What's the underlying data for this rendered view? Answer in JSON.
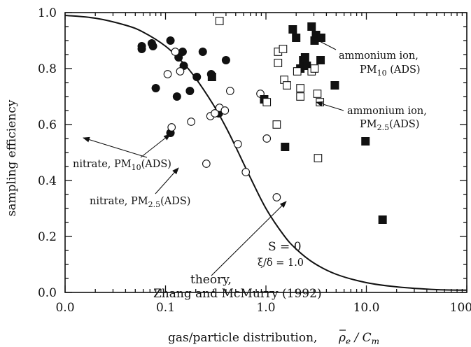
{
  "chart_data": {
    "type": "scatter",
    "xscale": "log",
    "xlim": [
      0.01,
      100
    ],
    "ylim": [
      0.0,
      1.0
    ],
    "xlabel": "gas/particle distribution,",
    "xlabel_math": "ρ̄e / Cm",
    "ylabel": "sampling efficiency",
    "x_tick_labels": [
      "0.0",
      "0.1",
      "1.0",
      "10.0",
      "100.0"
    ],
    "x_ticks": [
      0.01,
      0.1,
      1,
      10,
      100
    ],
    "y_tick_labels": [
      "0.0",
      "0.2",
      "0.4",
      "0.6",
      "0.8",
      "1.0"
    ],
    "y_ticks": [
      0,
      0.2,
      0.4,
      0.6,
      0.8,
      1.0
    ],
    "grid": false,
    "series": [
      {
        "name": "nitrate, PM10(ADS)",
        "marker": "filled-circle",
        "points": [
          [
            0.058,
            0.88
          ],
          [
            0.058,
            0.87
          ],
          [
            0.073,
            0.89
          ],
          [
            0.075,
            0.88
          ],
          [
            0.08,
            0.73
          ],
          [
            0.112,
            0.9
          ],
          [
            0.112,
            0.57
          ],
          [
            0.13,
            0.7
          ],
          [
            0.135,
            0.84
          ],
          [
            0.148,
            0.86
          ],
          [
            0.152,
            0.81
          ],
          [
            0.175,
            0.72
          ],
          [
            0.205,
            0.77
          ],
          [
            0.235,
            0.86
          ],
          [
            0.285,
            0.78
          ],
          [
            0.34,
            0.64
          ],
          [
            0.4,
            0.83
          ]
        ]
      },
      {
        "name": "nitrate, PM2.5(ADS)",
        "marker": "open-circle",
        "points": [
          [
            0.105,
            0.78
          ],
          [
            0.115,
            0.59
          ],
          [
            0.125,
            0.86
          ],
          [
            0.14,
            0.79
          ],
          [
            0.18,
            0.61
          ],
          [
            0.255,
            0.46
          ],
          [
            0.28,
            0.63
          ],
          [
            0.31,
            0.64
          ],
          [
            0.345,
            0.66
          ],
          [
            0.39,
            0.65
          ],
          [
            0.44,
            0.72
          ],
          [
            0.525,
            0.53
          ],
          [
            0.63,
            0.43
          ],
          [
            0.88,
            0.71
          ],
          [
            1.02,
            0.55
          ],
          [
            1.28,
            0.34
          ]
        ]
      },
      {
        "name": "ammonium ion, PM10(ADS)",
        "marker": "filled-square",
        "points": [
          [
            0.29,
            0.77
          ],
          [
            0.96,
            0.69
          ],
          [
            1.55,
            0.52
          ],
          [
            1.85,
            0.94
          ],
          [
            2.0,
            0.91
          ],
          [
            2.2,
            0.8
          ],
          [
            2.35,
            0.83
          ],
          [
            2.45,
            0.84
          ],
          [
            2.55,
            0.81
          ],
          [
            2.85,
            0.95
          ],
          [
            3.05,
            0.9
          ],
          [
            3.15,
            0.92
          ],
          [
            3.5,
            0.83
          ],
          [
            3.55,
            0.91
          ],
          [
            4.85,
            0.74
          ],
          [
            9.8,
            0.54
          ],
          [
            14.5,
            0.26
          ]
        ]
      },
      {
        "name": "ammonium ion, PM2.5(ADS)",
        "marker": "open-square",
        "points": [
          [
            0.345,
            0.97
          ],
          [
            1.02,
            0.68
          ],
          [
            1.28,
            0.6
          ],
          [
            1.32,
            0.82
          ],
          [
            1.32,
            0.86
          ],
          [
            1.48,
            0.87
          ],
          [
            1.52,
            0.76
          ],
          [
            1.62,
            0.74
          ],
          [
            2.05,
            0.79
          ],
          [
            2.2,
            0.73
          ],
          [
            2.2,
            0.7
          ],
          [
            2.85,
            0.79
          ],
          [
            3.05,
            0.8
          ],
          [
            3.25,
            0.71
          ],
          [
            3.45,
            0.68
          ],
          [
            3.3,
            0.48
          ]
        ]
      }
    ],
    "theory_curve": [
      [
        0.01,
        0.99
      ],
      [
        0.02,
        0.98
      ],
      [
        0.04,
        0.955
      ],
      [
        0.06,
        0.93
      ],
      [
        0.1,
        0.88
      ],
      [
        0.15,
        0.82
      ],
      [
        0.2,
        0.765
      ],
      [
        0.3,
        0.67
      ],
      [
        0.4,
        0.59
      ],
      [
        0.5,
        0.52
      ],
      [
        0.7,
        0.41
      ],
      [
        1.0,
        0.3
      ],
      [
        1.5,
        0.205
      ],
      [
        2.0,
        0.155
      ],
      [
        3.0,
        0.105
      ],
      [
        5.0,
        0.065
      ],
      [
        10,
        0.035
      ],
      [
        20,
        0.02
      ],
      [
        50,
        0.01
      ],
      [
        100,
        0.008
      ]
    ],
    "annotations": {
      "nitrate_pm10": {
        "prefix": "nitrate, PM",
        "sub": "10",
        "suffix": "(ADS)"
      },
      "nitrate_pm25": {
        "prefix": "nitrate, PM",
        "sub": "2.5",
        "suffix": "(ADS)"
      },
      "ammonium_pm10_line1": "ammonium ion,",
      "ammonium_pm10_line2": {
        "prefix": "PM",
        "sub": "10",
        "suffix": " (ADS)"
      },
      "ammonium_pm25_line1": "ammonium ion,",
      "ammonium_pm25_line2": {
        "prefix": "PM",
        "sub": "2.5",
        "suffix": "(ADS)"
      },
      "s_label": "S = 0",
      "xi_label": "ξ/δ = 1.0",
      "theory_line1": "theory,",
      "theory_line2": "Zhang and McMurry (1992)"
    }
  }
}
